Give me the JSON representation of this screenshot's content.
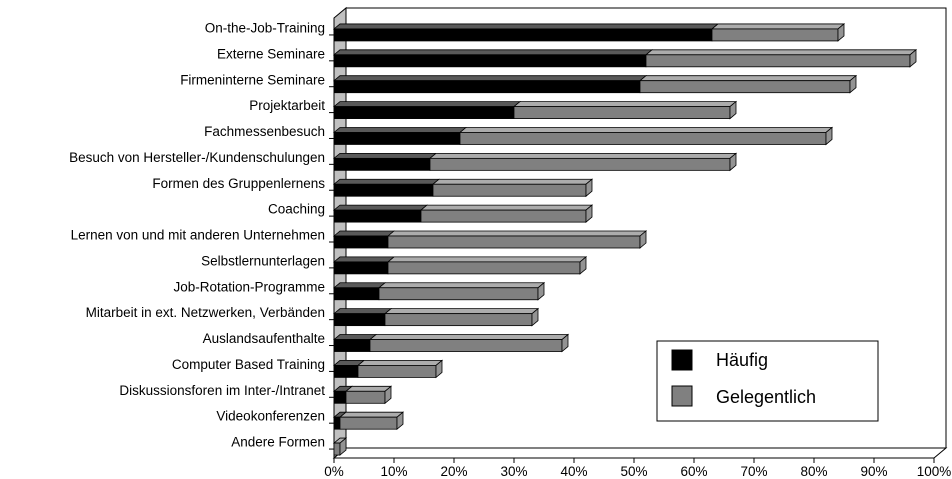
{
  "chart_data": {
    "type": "bar",
    "orientation": "horizontal",
    "stacked": true,
    "three_d": true,
    "categories": [
      "On-the-Job-Training",
      "Externe Seminare",
      "Firmeninterne Seminare",
      "Projektarbeit",
      "Fachmessenbesuch",
      "Besuch von Hersteller-/Kundenschulungen",
      "Formen des Gruppenlernens",
      "Coaching",
      "Lernen von und mit anderen Unternehmen",
      "Selbstlernunterlagen",
      "Job-Rotation-Programme",
      "Mitarbeit in ext. Netzwerken, Verbänden",
      "Auslandsaufenthalte",
      "Computer Based Training",
      "Diskussionsforen im Inter-/Intranet",
      "Videokonferenzen",
      "Andere Formen"
    ],
    "series": [
      {
        "name": "Häufig",
        "color": "#000000",
        "values": [
          63,
          52,
          51,
          30,
          21,
          16,
          16.5,
          14.5,
          9,
          9,
          7.5,
          8.5,
          6,
          4,
          2,
          1,
          0
        ]
      },
      {
        "name": "Gelegentlich",
        "color": "#808080",
        "values": [
          21,
          44,
          35,
          36,
          61,
          50,
          25.5,
          27.5,
          42,
          32,
          26.5,
          24.5,
          32,
          13,
          6.5,
          9.5,
          1
        ]
      }
    ],
    "xlim": [
      0,
      100
    ],
    "xticks": [
      "0%",
      "10%",
      "20%",
      "30%",
      "40%",
      "50%",
      "60%",
      "70%",
      "80%",
      "90%",
      "100%"
    ],
    "legend_position": "bottom-right",
    "grid": false
  }
}
